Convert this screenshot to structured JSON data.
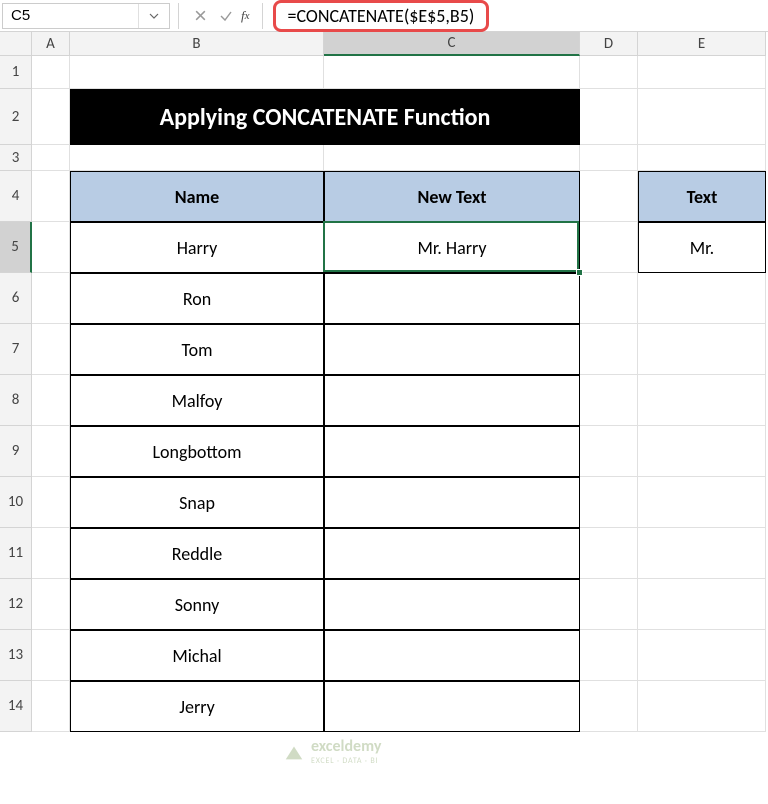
{
  "namebox": {
    "value": "C5"
  },
  "formula": {
    "text": "=CONCATENATE($E$5,B5)"
  },
  "columns": {
    "labels": [
      "A",
      "B",
      "C",
      "D",
      "E"
    ],
    "widths": [
      38,
      254,
      256,
      58,
      128
    ],
    "selected_index": 2
  },
  "rows": {
    "labels": [
      "1",
      "2",
      "3",
      "4",
      "5",
      "6",
      "7",
      "8",
      "9",
      "10",
      "11",
      "12",
      "13",
      "14"
    ],
    "heights": [
      33,
      56,
      26,
      51,
      51,
      51,
      51,
      51,
      51,
      51,
      51,
      51,
      51,
      51
    ],
    "selected_index": 4
  },
  "title_banner": {
    "text": "Applying CONCATENATE Function",
    "bg_color": "#000000",
    "text_color": "#ffffff"
  },
  "table_headers": {
    "name": "Name",
    "newtext": "New Text",
    "text": "Text",
    "bg_color": "#b8cce4"
  },
  "data": {
    "names": [
      "Harry",
      "Ron",
      "Tom",
      "Malfoy",
      "Longbottom",
      "Snap",
      "Reddle",
      "Sonny",
      "Michal",
      "Jerry"
    ],
    "newtext": [
      "Mr. Harry",
      "",
      "",
      "",
      "",
      "",
      "",
      "",
      "",
      ""
    ],
    "text_val": "Mr."
  },
  "active_cell": {
    "col": 2,
    "row": 4
  },
  "formula_highlight_color": "#e84a4a",
  "watermark": {
    "name": "exceldemy",
    "sub": "EXCEL · DATA · BI"
  }
}
